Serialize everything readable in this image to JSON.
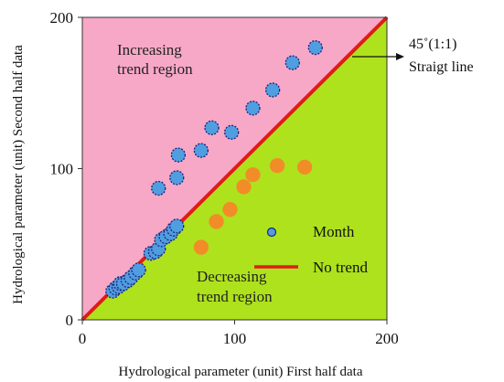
{
  "chart_data": {
    "type": "scatter",
    "xlabel": "Hydrological parameter (unit) First half data",
    "ylabel": "Hydrological parameter (unit) Second half data",
    "xlim": [
      0,
      200
    ],
    "ylim": [
      0,
      200
    ],
    "x_ticks": [
      "0",
      "100",
      "200"
    ],
    "y_ticks": [
      "0",
      "100",
      "200"
    ],
    "grid": false,
    "legend_position": "bottom-right",
    "regions": {
      "increasing": {
        "label": "Increasing\ntrend region",
        "color": "#f7a8c6"
      },
      "decreasing": {
        "label": "Decreasing\ntrend region",
        "color": "#aee21d"
      }
    },
    "reference_line": {
      "label": "No trend",
      "color": "#e01b1b",
      "annotation": "45˚(1:1)\nStraigt line"
    },
    "series": [
      {
        "name": "Month",
        "color": "#4f9ee0",
        "edge_color": "#20207a",
        "points": [
          [
            20,
            19
          ],
          [
            22,
            21
          ],
          [
            24,
            22
          ],
          [
            25,
            24
          ],
          [
            27,
            24
          ],
          [
            30,
            26
          ],
          [
            32,
            28
          ],
          [
            35,
            31
          ],
          [
            37,
            33
          ],
          [
            45,
            44
          ],
          [
            48,
            45
          ],
          [
            50,
            47
          ],
          [
            52,
            53
          ],
          [
            55,
            55
          ],
          [
            58,
            57
          ],
          [
            60,
            60
          ],
          [
            62,
            62
          ],
          [
            50,
            87
          ],
          [
            62,
            94
          ],
          [
            63,
            109
          ],
          [
            78,
            112
          ],
          [
            85,
            127
          ],
          [
            98,
            124
          ],
          [
            112,
            140
          ],
          [
            125,
            152
          ],
          [
            138,
            170
          ],
          [
            153,
            180
          ]
        ]
      },
      {
        "color": "#f28c28",
        "edge_color": "#f28c28",
        "points": [
          [
            78,
            48
          ],
          [
            88,
            65
          ],
          [
            97,
            73
          ],
          [
            106,
            88
          ],
          [
            112,
            96
          ],
          [
            128,
            102
          ],
          [
            146,
            101
          ]
        ]
      }
    ]
  }
}
